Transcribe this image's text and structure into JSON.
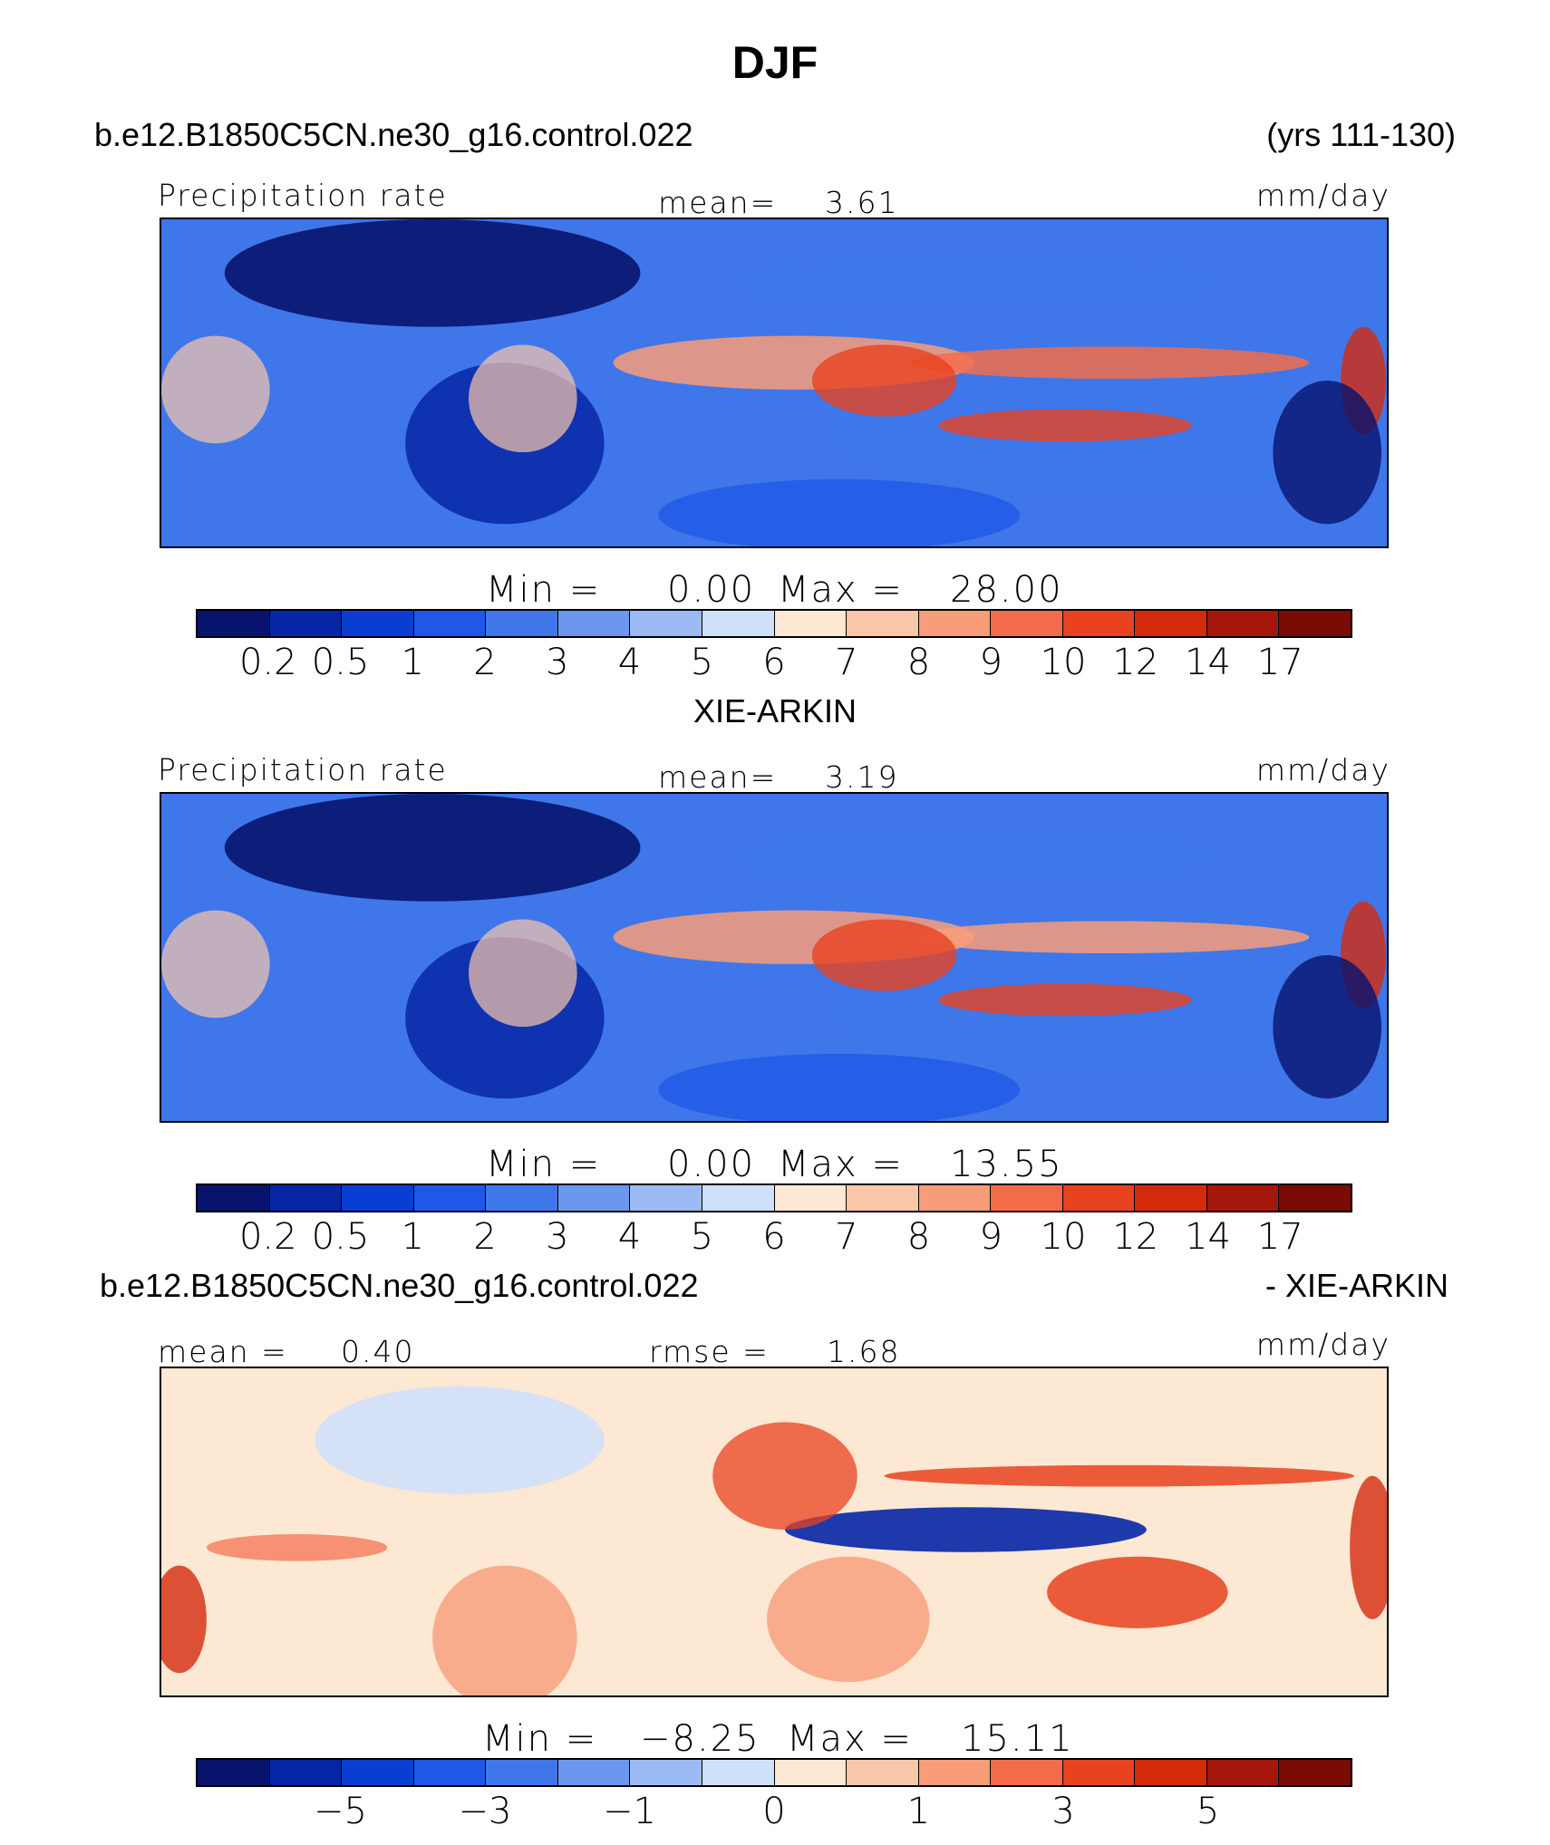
{
  "title": "DJF",
  "panel1": {
    "case": "b.e12.B1850C5CN.ne30_g16.control.022",
    "years": "(yrs 111-130)",
    "var_label": "Precipitation rate",
    "mean_label": "mean=",
    "mean_value": "3.61",
    "units": "mm/day",
    "min_label": "Min  =",
    "min_value": "0.00",
    "max_label": "Max  =",
    "max_value": "28.00"
  },
  "panel2": {
    "case": "XIE-ARKIN",
    "var_label": "Precipitation rate",
    "mean_label": "mean=",
    "mean_value": "3.19",
    "units": "mm/day",
    "min_label": "Min  =",
    "min_value": "0.00",
    "max_label": "Max  =",
    "max_value": "13.55"
  },
  "panel3": {
    "case_left": "b.e12.B1850C5CN.ne30_g16.control.022",
    "case_right": "- XIE-ARKIN",
    "mean_label": "mean  =",
    "mean_value": "0.40",
    "rmse_label": "rmse  =",
    "rmse_value": "1.68",
    "units": "mm/day",
    "min_label": "Min  =",
    "min_value": "−8.25",
    "max_label": "Max  =",
    "max_value": "15.11"
  },
  "colors": {
    "abs_scale": [
      "#08136e",
      "#0626a6",
      "#0a3dd1",
      "#1f57e6",
      "#3f77ea",
      "#6b97ef",
      "#9bbaf3",
      "#cfe0f9",
      "#fde8d4",
      "#fbc7ab",
      "#f89c79",
      "#f26c4a",
      "#e8421f",
      "#d32a0c",
      "#a5170a",
      "#7a0c05"
    ],
    "diff_scale": [
      "#08136e",
      "#0626a6",
      "#0a3dd1",
      "#1f57e6",
      "#3f77ea",
      "#6b97ef",
      "#9bbaf3",
      "#cfe0f9",
      "#fde8d4",
      "#fbc7ab",
      "#f89c79",
      "#f26c4a",
      "#e8421f",
      "#d32a0c",
      "#a5170a",
      "#7a0c05"
    ]
  },
  "chart_data": [
    {
      "type": "heatmap",
      "title": "b.e12.B1850C5CN.ne30_g16.control.022 (yrs 111-130)",
      "variable": "Precipitation rate",
      "units": "mm/day",
      "mean": 3.61,
      "min": 0.0,
      "max": 28.0,
      "colorbar_ticks": [
        "0.2",
        "0.5",
        "1",
        "2",
        "3",
        "4",
        "5",
        "6",
        "7",
        "8",
        "9",
        "10",
        "12",
        "14",
        "17"
      ]
    },
    {
      "type": "heatmap",
      "title": "XIE-ARKIN",
      "variable": "Precipitation rate",
      "units": "mm/day",
      "mean": 3.19,
      "min": 0.0,
      "max": 13.55,
      "colorbar_ticks": [
        "0.2",
        "0.5",
        "1",
        "2",
        "3",
        "4",
        "5",
        "6",
        "7",
        "8",
        "9",
        "10",
        "12",
        "14",
        "17"
      ]
    },
    {
      "type": "heatmap",
      "title": "b.e12.B1850C5CN.ne30_g16.control.022 - XIE-ARKIN",
      "units": "mm/day",
      "mean": 0.4,
      "rmse": 1.68,
      "min": -8.25,
      "max": 15.11,
      "colorbar_ticks": [
        "−5",
        "−3",
        "−1",
        "0",
        "1",
        "3",
        "5"
      ]
    }
  ]
}
